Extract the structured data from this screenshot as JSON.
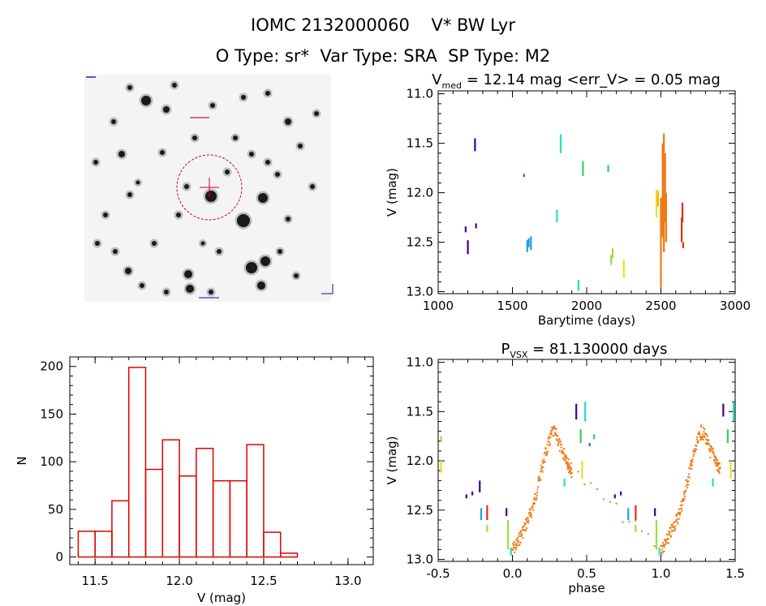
{
  "header": {
    "title": "IOMC 2132000060    V* BW Lyr",
    "subtitle": "O Type: sr*  Var Type: SRA  SP Type: M2"
  },
  "colors": {
    "hist": "#e00000",
    "marker": "#cc0033",
    "palette": [
      "#3c00a0",
      "#1a5fc8",
      "#1ea0dc",
      "#22e0c0",
      "#30d060",
      "#98e040",
      "#e8e020",
      "#f4b010",
      "#f07810",
      "#e03010"
    ]
  },
  "chart_data": [
    {
      "type": "image",
      "panel": "finder-chart",
      "description_icon": "star-field",
      "annotations": [
        "target-circle",
        "crosshair"
      ]
    },
    {
      "type": "scatter",
      "panel": "lightcurve",
      "title_main": "V",
      "title_sub": "med",
      "title_rest": " = 12.14 mag <err_V> = 0.05 mag",
      "xlabel": "Barytime (days)",
      "ylabel": "V (mag)",
      "xlim": [
        1000,
        3000
      ],
      "ylim": [
        13.02,
        10.97
      ],
      "y_inverted": true,
      "xticks": [
        "1000",
        "1500",
        "2000",
        "2500",
        "3000"
      ],
      "yticks": [
        "11.0",
        "11.5",
        "12.0",
        "12.5",
        "13.0"
      ],
      "segments": [
        {
          "x": 1185,
          "y1": 12.34,
          "y2": 12.4,
          "c": 0
        },
        {
          "x": 1200,
          "y1": 12.48,
          "y2": 12.62,
          "c": 0
        },
        {
          "x": 1248,
          "y1": 11.45,
          "y2": 11.58,
          "c": 0
        },
        {
          "x": 1255,
          "y1": 12.31,
          "y2": 12.36,
          "c": 0
        },
        {
          "x": 1578,
          "y1": 11.81,
          "y2": 11.84,
          "c": 1
        },
        {
          "x": 1600,
          "y1": 12.48,
          "y2": 12.6,
          "c": 2
        },
        {
          "x": 1610,
          "y1": 12.46,
          "y2": 12.55,
          "c": 2
        },
        {
          "x": 1625,
          "y1": 12.44,
          "y2": 12.58,
          "c": 2
        },
        {
          "x": 1800,
          "y1": 12.17,
          "y2": 12.3,
          "c": 3
        },
        {
          "x": 1825,
          "y1": 11.41,
          "y2": 11.6,
          "c": 3
        },
        {
          "x": 1945,
          "y1": 12.88,
          "y2": 12.99,
          "c": 3
        },
        {
          "x": 1975,
          "y1": 11.68,
          "y2": 11.83,
          "c": 4
        },
        {
          "x": 2145,
          "y1": 11.72,
          "y2": 11.79,
          "c": 4
        },
        {
          "x": 2165,
          "y1": 12.63,
          "y2": 12.73,
          "c": 5
        },
        {
          "x": 2175,
          "y1": 12.56,
          "y2": 12.66,
          "c": 5
        },
        {
          "x": 2250,
          "y1": 12.68,
          "y2": 12.86,
          "c": 6
        },
        {
          "x": 2470,
          "y1": 11.97,
          "y2": 12.25,
          "c": 6
        },
        {
          "x": 2480,
          "y1": 11.98,
          "y2": 12.14,
          "c": 7
        },
        {
          "x": 2500,
          "y1": 12.05,
          "y2": 12.95,
          "c": 8
        },
        {
          "x": 2512,
          "y1": 11.5,
          "y2": 12.45,
          "c": 8
        },
        {
          "x": 2520,
          "y1": 11.4,
          "y2": 12.6,
          "c": 8
        },
        {
          "x": 2528,
          "y1": 11.6,
          "y2": 12.3,
          "c": 8
        },
        {
          "x": 2535,
          "y1": 12.0,
          "y2": 12.5,
          "c": 8
        },
        {
          "x": 2640,
          "y1": 12.25,
          "y2": 12.5,
          "c": 9
        },
        {
          "x": 2645,
          "y1": 12.1,
          "y2": 12.3,
          "c": 9
        },
        {
          "x": 2650,
          "y1": 12.5,
          "y2": 12.56,
          "c": 9
        }
      ]
    },
    {
      "type": "bar",
      "panel": "histogram",
      "xlabel": "V (mag)",
      "ylabel": "N",
      "xlim": [
        11.35,
        13.15
      ],
      "ylim": [
        -8,
        210
      ],
      "xticks": [
        "11.5",
        "12.0",
        "12.5",
        "13.0"
      ],
      "yticks": [
        "0",
        "50",
        "100",
        "150",
        "200"
      ],
      "bin_start": 11.4,
      "bin_width": 0.1,
      "values": [
        27,
        27,
        59,
        199,
        92,
        123,
        85,
        114,
        80,
        80,
        118,
        26,
        4
      ]
    },
    {
      "type": "scatter",
      "panel": "phased",
      "title_main": "P",
      "title_sub": "VSX",
      "title_rest": " = 81.130000 days",
      "xlabel": "phase",
      "ylabel": "V (mag)",
      "xlim": [
        -0.5,
        1.5
      ],
      "ylim": [
        13.02,
        10.97
      ],
      "y_inverted": true,
      "xticks": [
        "-0.5",
        "0.0",
        "0.5",
        "1.0",
        "1.5"
      ],
      "yticks": [
        "11.0",
        "11.5",
        "12.0",
        "12.5",
        "13.0"
      ],
      "segments": [
        {
          "x": -0.48,
          "y1": 11.75,
          "y2": 11.8,
          "c": 5
        },
        {
          "x": -0.48,
          "y1": 12.0,
          "y2": 12.12,
          "c": 6
        },
        {
          "x": -0.31,
          "y1": 12.34,
          "y2": 12.38,
          "c": 0
        },
        {
          "x": -0.27,
          "y1": 12.31,
          "y2": 12.35,
          "c": 0
        },
        {
          "x": -0.22,
          "y1": 12.2,
          "y2": 12.32,
          "c": 0
        },
        {
          "x": -0.21,
          "y1": 12.48,
          "y2": 12.6,
          "c": 2
        },
        {
          "x": -0.17,
          "y1": 12.45,
          "y2": 12.6,
          "c": 9
        },
        {
          "x": -0.17,
          "y1": 12.65,
          "y2": 12.72,
          "c": 5
        },
        {
          "x": -0.04,
          "y1": 12.48,
          "y2": 12.56,
          "c": 0
        },
        {
          "x": -0.03,
          "y1": 12.6,
          "y2": 12.9,
          "c": 5
        },
        {
          "x": -0.01,
          "y1": 12.88,
          "y2": 12.96,
          "c": 3
        },
        {
          "x": 0.43,
          "y1": 11.42,
          "y2": 11.58,
          "c": 0
        },
        {
          "x": 0.46,
          "y1": 11.68,
          "y2": 11.82,
          "c": 4
        },
        {
          "x": 0.49,
          "y1": 11.4,
          "y2": 11.6,
          "c": 3
        },
        {
          "x": 0.47,
          "y1": 12.0,
          "y2": 12.18,
          "c": 6
        },
        {
          "x": 0.55,
          "y1": 11.73,
          "y2": 11.78,
          "c": 4
        },
        {
          "x": 0.35,
          "y1": 12.18,
          "y2": 12.26,
          "c": 3
        },
        {
          "x": 0.52,
          "y1": 11.82,
          "y2": 11.85,
          "c": 1
        },
        {
          "x": 0.69,
          "y1": 12.34,
          "y2": 12.38,
          "c": 0
        },
        {
          "x": 0.73,
          "y1": 12.31,
          "y2": 12.35,
          "c": 0
        },
        {
          "x": 0.78,
          "y1": 12.48,
          "y2": 12.6,
          "c": 2
        },
        {
          "x": 0.83,
          "y1": 12.45,
          "y2": 12.6,
          "c": 9
        },
        {
          "x": 0.83,
          "y1": 12.65,
          "y2": 12.72,
          "c": 5
        },
        {
          "x": 0.96,
          "y1": 12.48,
          "y2": 12.56,
          "c": 0
        },
        {
          "x": 0.97,
          "y1": 12.6,
          "y2": 12.9,
          "c": 5
        },
        {
          "x": 0.99,
          "y1": 12.88,
          "y2": 12.96,
          "c": 3
        },
        {
          "x": 1.35,
          "y1": 12.18,
          "y2": 12.26,
          "c": 3
        },
        {
          "x": 1.42,
          "y1": 11.42,
          "y2": 11.55,
          "c": 0
        },
        {
          "x": 1.45,
          "y1": 11.68,
          "y2": 11.82,
          "c": 4
        },
        {
          "x": 1.47,
          "y1": 12.0,
          "y2": 12.18,
          "c": 6
        },
        {
          "x": 1.49,
          "y1": 11.4,
          "y2": 11.6,
          "c": 3
        }
      ],
      "curve": [
        [
          0.0,
          12.9
        ],
        [
          0.03,
          12.85
        ],
        [
          0.06,
          12.75
        ],
        [
          0.09,
          12.65
        ],
        [
          0.12,
          12.55
        ],
        [
          0.15,
          12.4
        ],
        [
          0.18,
          12.2
        ],
        [
          0.21,
          12.0
        ],
        [
          0.24,
          11.85
        ],
        [
          0.27,
          11.7
        ],
        [
          0.3,
          11.75
        ],
        [
          0.33,
          11.9
        ],
        [
          0.36,
          11.95
        ],
        [
          0.38,
          12.05
        ],
        [
          0.4,
          12.1
        ],
        [
          1.0,
          12.9
        ],
        [
          1.03,
          12.85
        ],
        [
          1.06,
          12.75
        ],
        [
          1.09,
          12.65
        ],
        [
          1.12,
          12.55
        ],
        [
          1.15,
          12.4
        ],
        [
          1.18,
          12.2
        ],
        [
          1.21,
          12.0
        ],
        [
          1.24,
          11.85
        ],
        [
          1.27,
          11.7
        ],
        [
          1.3,
          11.75
        ],
        [
          1.33,
          11.9
        ],
        [
          1.36,
          11.95
        ],
        [
          1.38,
          12.05
        ],
        [
          1.4,
          12.1
        ]
      ]
    }
  ]
}
